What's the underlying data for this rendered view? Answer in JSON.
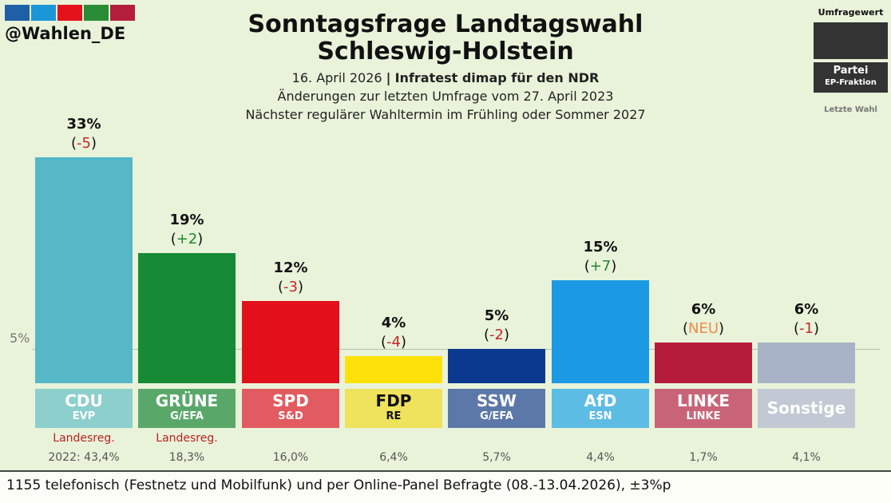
{
  "handle": "@Wahlen_DE",
  "header_colors": [
    "#1f5fa8",
    "#1b96d6",
    "#e3121b",
    "#2a8c34",
    "#b41e3c"
  ],
  "title_line1": "Sonntagsfrage Landtagswahl",
  "title_line2": "Schleswig-Holstein",
  "subtitle_date": "16. April 2026",
  "subtitle_sep": "|",
  "subtitle_pollster": "Infratest dimap für den NDR",
  "subtitle_line2": "Änderungen zur letzten Umfrage vom 27. April 2023",
  "subtitle_line3": "Nächster regulärer Wahltermin im Frühling oder Sommer 2027",
  "legend": {
    "label_value": "Umfragewert",
    "label_party": "Partei",
    "label_faction": "EP-Fraktion",
    "label_last": "Letzte Wahl"
  },
  "reference_label": "5%",
  "footer": "1155 telefonisch (Festnetz und Mobilfunk) und per Online-Panel Befragte (08.-13.04.2026), ±3%p",
  "chart_data": {
    "type": "bar",
    "reference_value": 5,
    "ylim": [
      0,
      33
    ],
    "bars": [
      {
        "party": "CDU",
        "faction": "EVP",
        "value": 33,
        "value_label": "33%",
        "change_label": "-5",
        "change_color": "#c62828",
        "color": "#56b7c6",
        "box_color": "#8ccfcd",
        "gov": "Landesreg.",
        "previous": "2022: 43,4%",
        "text_color": "#ffffff"
      },
      {
        "party": "GRÜNE",
        "faction": "G/EFA",
        "value": 19,
        "value_label": "19%",
        "change_label": "+2",
        "change_color": "#1f8a2d",
        "color": "#168a34",
        "box_color": "#59a86a",
        "gov": "Landesreg.",
        "previous": "18,3%",
        "text_color": "#ffffff"
      },
      {
        "party": "SPD",
        "faction": "S&D",
        "value": 12,
        "value_label": "12%",
        "change_label": "-3",
        "change_color": "#c62828",
        "color": "#e3101b",
        "box_color": "#e25b60",
        "gov": "",
        "previous": "16,0%",
        "text_color": "#ffffff"
      },
      {
        "party": "FDP",
        "faction": "RE",
        "value": 4,
        "value_label": "4%",
        "change_label": "-4",
        "change_color": "#c62828",
        "color": "#ffe10a",
        "box_color": "#efe25c",
        "gov": "",
        "previous": "6,4%",
        "text_color": "#111111"
      },
      {
        "party": "SSW",
        "faction": "G/EFA",
        "value": 5,
        "value_label": "5%",
        "change_label": "-2",
        "change_color": "#c62828",
        "color": "#0b3990",
        "box_color": "#5c78a8",
        "gov": "",
        "previous": "5,7%",
        "text_color": "#ffffff"
      },
      {
        "party": "AfD",
        "faction": "ESN",
        "value": 15,
        "value_label": "15%",
        "change_label": "+7",
        "change_color": "#1f8a2d",
        "color": "#1b9ae3",
        "box_color": "#5cbce4",
        "gov": "",
        "previous": "4,4%",
        "text_color": "#ffffff"
      },
      {
        "party": "LINKE",
        "faction": "LINKE",
        "value": 6,
        "value_label": "6%",
        "change_label": "NEU",
        "change_color": "#f08a4b",
        "color": "#b51c3b",
        "box_color": "#c96478",
        "gov": "",
        "previous": "1,7%",
        "text_color": "#ffffff"
      },
      {
        "party": "Sonstige",
        "faction": "",
        "value": 6,
        "value_label": "6%",
        "change_label": "-1",
        "change_color": "#c62828",
        "color": "#a8b3c7",
        "box_color": "#c2c9d4",
        "gov": "",
        "previous": "4,1%",
        "text_color": "#ffffff"
      }
    ]
  }
}
